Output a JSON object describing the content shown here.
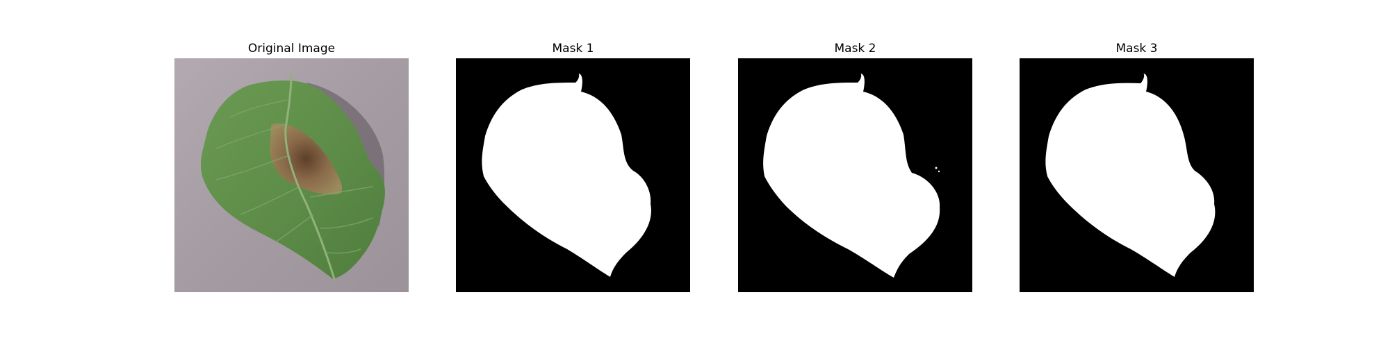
{
  "figure": {
    "panels": [
      {
        "title": "Original Image",
        "kind": "photo",
        "subject": "potato-leaf-with-blight"
      },
      {
        "title": "Mask 1",
        "kind": "mask"
      },
      {
        "title": "Mask 2",
        "kind": "mask"
      },
      {
        "title": "Mask 3",
        "kind": "mask"
      }
    ]
  },
  "colors": {
    "background": "#ffffff",
    "mask_bg": "#000000",
    "mask_fg": "#ffffff",
    "photo_bg": "#a89fa6",
    "leaf_green": "#5f8f4a",
    "lesion_brown": "#7a5a3e"
  }
}
